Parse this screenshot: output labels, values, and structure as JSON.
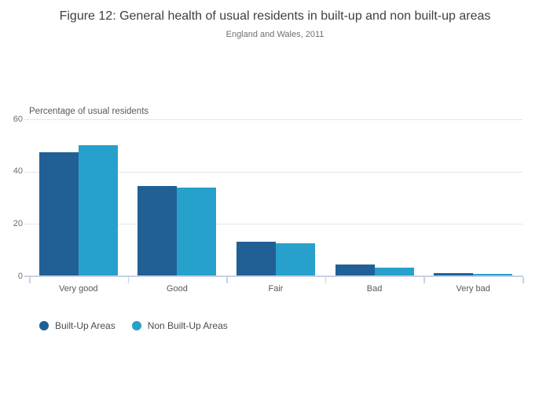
{
  "title": "Figure 12: General health of usual residents in built-up and non built-up areas",
  "subtitle": "England and Wales, 2011",
  "chart_data": {
    "type": "bar",
    "title": "Figure 12: General health of usual residents in built-up and non built-up areas",
    "subtitle": "England and Wales, 2011",
    "axis_title": "Percentage of usual residents",
    "xlabel": "",
    "ylabel": "Percentage of usual residents",
    "categories": [
      "Very good",
      "Good",
      "Fair",
      "Bad",
      "Very bad"
    ],
    "series": [
      {
        "name": "Built-Up Areas",
        "color": "#206095",
        "values": [
          47.5,
          34.5,
          13.2,
          4.4,
          1.2
        ]
      },
      {
        "name": "Non Built-Up Areas",
        "color": "#27a0cc",
        "values": [
          50.0,
          34.0,
          12.5,
          3.4,
          0.8
        ]
      }
    ],
    "y_ticks": [
      0,
      20,
      40,
      60
    ],
    "ylim": [
      0,
      60
    ],
    "grid": true,
    "legend_position": "bottom-left"
  },
  "colors": {
    "series_dark": "#206095",
    "series_light": "#27a0cc",
    "axis_line": "#c8d1e3",
    "gridline": "#e2e5e9",
    "title_text": "#3f3f3f",
    "label_text": "#595959"
  }
}
